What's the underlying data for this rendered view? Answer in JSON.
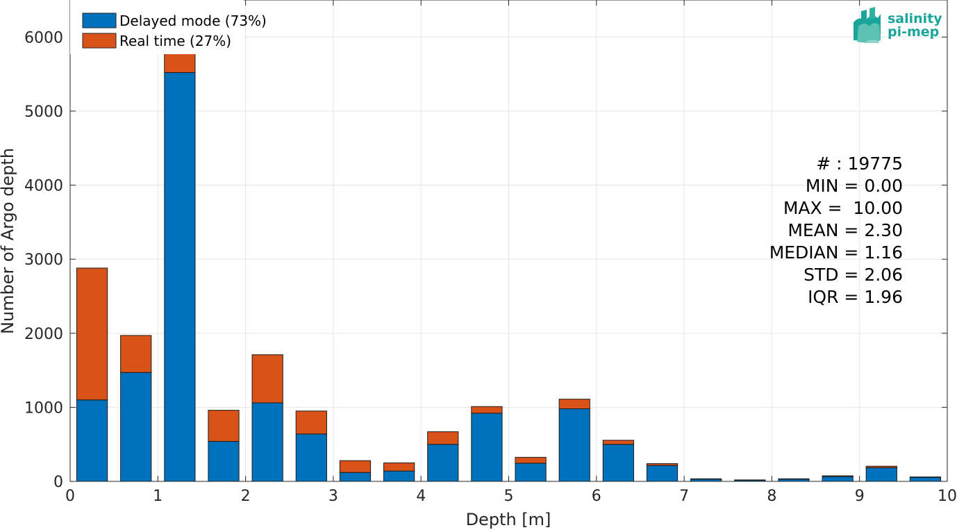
{
  "chart_data": {
    "type": "bar",
    "stacked": true,
    "xlabel": "Depth [m]",
    "ylabel": "Number of Argo depth",
    "xlim": [
      0,
      10
    ],
    "ylim": [
      0,
      6500
    ],
    "xticks": [
      0,
      1,
      2,
      3,
      4,
      5,
      6,
      7,
      8,
      9,
      10
    ],
    "yticks": [
      0,
      1000,
      2000,
      3000,
      4000,
      5000,
      6000
    ],
    "grid": true,
    "legend_position": "top-left",
    "bin_width": 0.5,
    "bar_width_fraction": 0.7,
    "x": [
      0.25,
      0.75,
      1.25,
      1.75,
      2.25,
      2.75,
      3.25,
      3.75,
      4.25,
      4.75,
      5.25,
      5.75,
      6.25,
      6.75,
      7.25,
      7.75,
      8.25,
      8.75,
      9.25,
      9.75
    ],
    "series": [
      {
        "name": "Delayed mode (73%)",
        "color": "#0072bd",
        "values": [
          1100,
          1470,
          5520,
          540,
          1060,
          640,
          120,
          140,
          500,
          920,
          245,
          980,
          500,
          215,
          30,
          15,
          30,
          65,
          185,
          55
        ]
      },
      {
        "name": "Real time (27%)",
        "color": "#d95319",
        "values": [
          1780,
          500,
          920,
          420,
          650,
          310,
          160,
          110,
          170,
          90,
          80,
          130,
          55,
          25,
          5,
          5,
          5,
          10,
          20,
          5
        ]
      }
    ]
  },
  "stats": {
    "count": "# : 19775",
    "min": "MIN = 0.00",
    "max": "MAX =  10.00",
    "mean": "MEAN = 2.30",
    "median": "MEDIAN = 1.16",
    "std": "STD = 2.06",
    "iqr": "IQR = 1.96"
  },
  "logo": {
    "line1": "salinity",
    "line2": "pi-mep",
    "color": "#1aa59a"
  }
}
